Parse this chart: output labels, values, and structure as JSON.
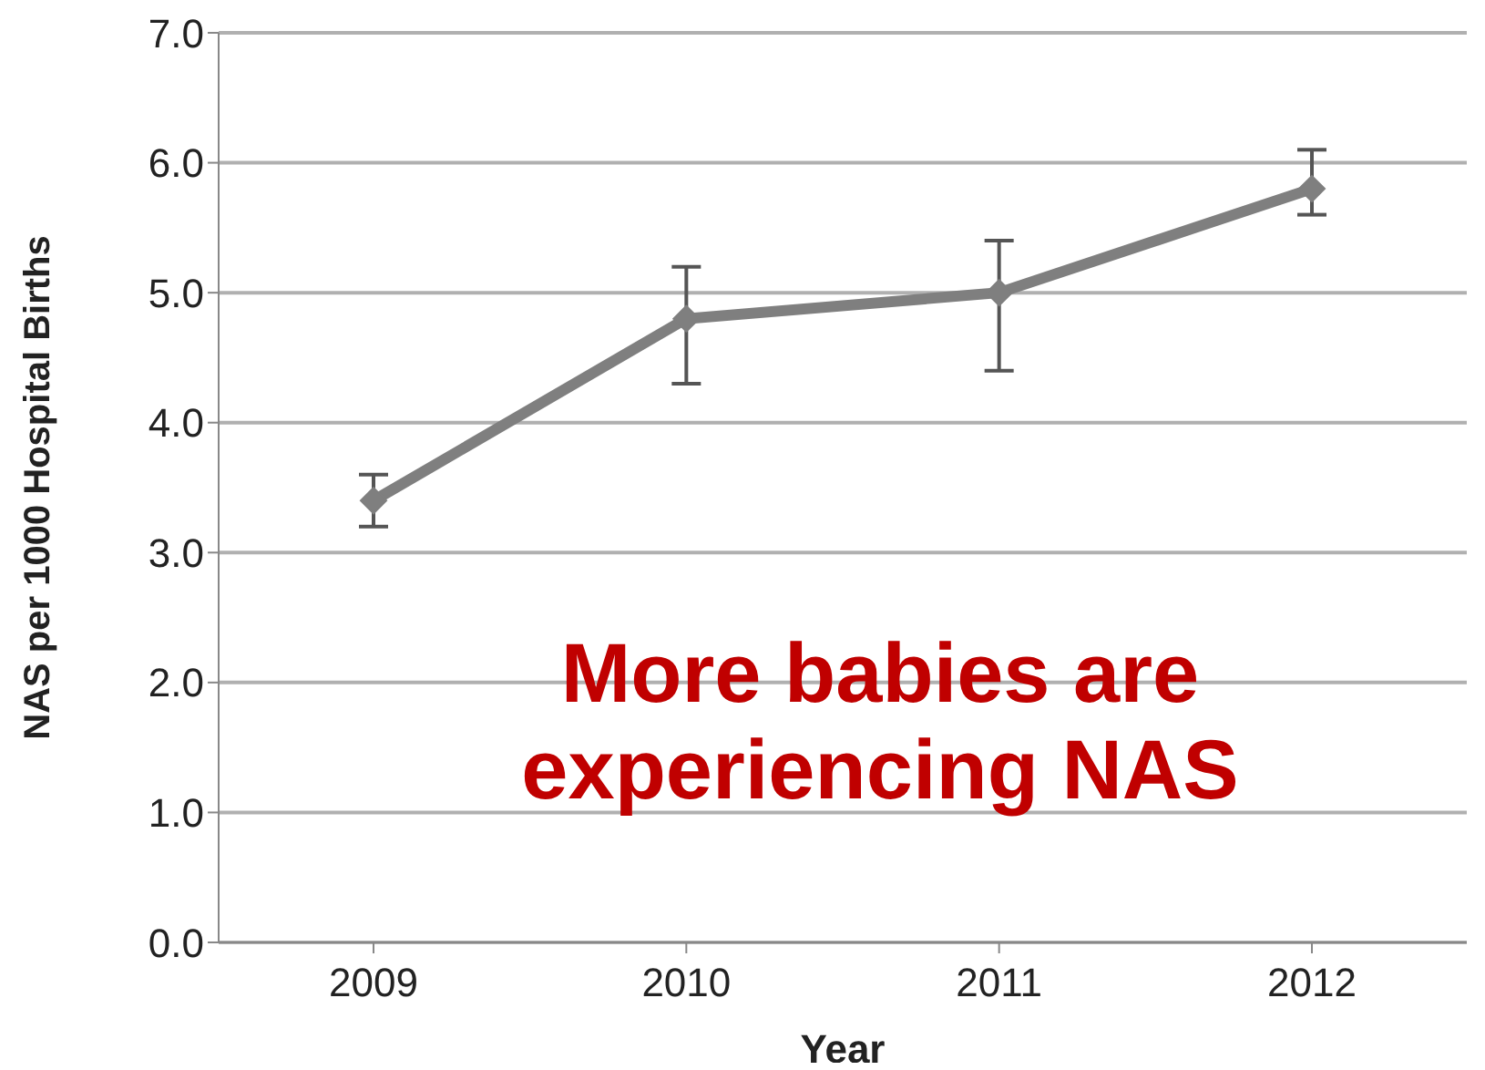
{
  "chart_data": {
    "type": "line",
    "xlabel": "Year",
    "ylabel": "NAS per 1000 Hospital Births",
    "categories": [
      "2009",
      "2010",
      "2011",
      "2012"
    ],
    "series": [
      {
        "color": "#7f7f7f",
        "values": [
          3.4,
          4.8,
          5.0,
          5.8
        ],
        "errors": [
          [
            3.2,
            3.6
          ],
          [
            4.3,
            5.2
          ],
          [
            4.4,
            5.4
          ],
          [
            5.6,
            6.1
          ]
        ]
      }
    ],
    "ylim": [
      0,
      7
    ],
    "yticks": [
      {
        "value": 0,
        "label": "0.0"
      },
      {
        "value": 1,
        "label": "1.0"
      },
      {
        "value": 2,
        "label": "2.0"
      },
      {
        "value": 3,
        "label": "3.0"
      },
      {
        "value": 4,
        "label": "4.0"
      },
      {
        "value": 5,
        "label": "5.0"
      },
      {
        "value": 6,
        "label": "6.0"
      },
      {
        "value": 7,
        "label": "7.0"
      }
    ],
    "grid": "y",
    "marker": "diamond",
    "line_style": "solid",
    "annotations": [
      "More babies are experiencing NAS"
    ]
  }
}
